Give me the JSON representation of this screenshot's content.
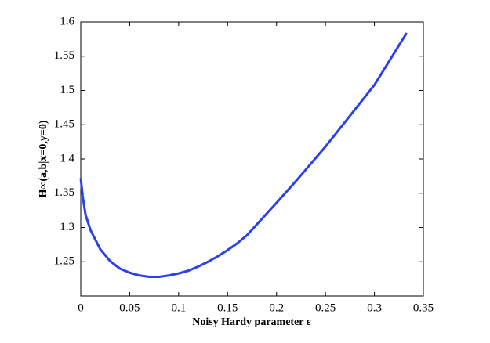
{
  "chart_data": {
    "type": "line",
    "xlabel": "Noisy Hardy parameter ε",
    "ylabel": "H∞(a,b|x=0,y=0)",
    "x": [
      0,
      0.002,
      0.005,
      0.01,
      0.02,
      0.03,
      0.04,
      0.05,
      0.06,
      0.07,
      0.08,
      0.09,
      0.1,
      0.11,
      0.12,
      0.13,
      0.14,
      0.15,
      0.16,
      0.17,
      0.2,
      0.22,
      0.25,
      0.3,
      0.333
    ],
    "series": [
      {
        "color": "#2a3ff0",
        "values": [
          1.372,
          1.345,
          1.318,
          1.296,
          1.268,
          1.251,
          1.24,
          1.234,
          1.23,
          1.228,
          1.228,
          1.23,
          1.233,
          1.237,
          1.243,
          1.25,
          1.258,
          1.267,
          1.277,
          1.289,
          1.336,
          1.368,
          1.418,
          1.508,
          1.584
        ]
      }
    ],
    "xlim": [
      0,
      0.35
    ],
    "xticks": [
      0,
      0.05,
      0.1,
      0.15,
      0.2,
      0.25,
      0.3,
      0.35
    ],
    "ylim": [
      1.2,
      1.6
    ],
    "yticks": [
      1.25,
      1.3,
      1.35,
      1.4,
      1.45,
      1.5,
      1.55,
      1.6
    ]
  }
}
